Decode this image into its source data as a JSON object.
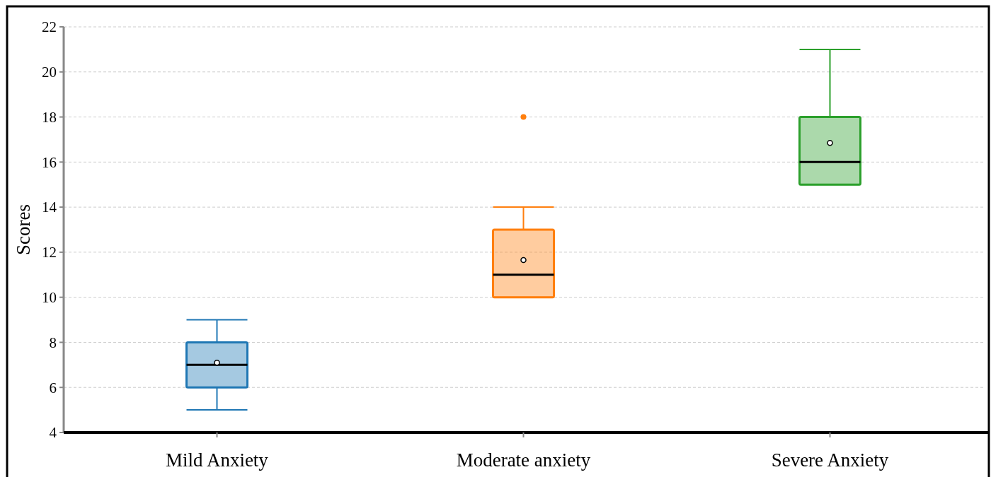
{
  "chart_data": {
    "type": "box",
    "ylabel": "Scores",
    "categories": [
      "Mild Anxiety",
      "Moderate anxiety",
      "Severe Anxiety"
    ],
    "colors": [
      "#1f77b4",
      "#ff7f0e",
      "#2ca02c"
    ],
    "boxes": [
      {
        "low": 5,
        "q1": 6,
        "median": 7,
        "q3": 8,
        "high": 9,
        "mean": 7.1
      },
      {
        "low": 10,
        "q1": 10,
        "median": 11,
        "q3": 13,
        "high": 14,
        "mean": 11.65,
        "outliers": [
          18
        ]
      },
      {
        "low": 15,
        "q1": 15,
        "median": 16,
        "q3": 18,
        "high": 21,
        "mean": 16.85
      }
    ],
    "ylim": [
      4,
      22
    ],
    "yticks": [
      4,
      6,
      8,
      10,
      12,
      14,
      16,
      18,
      20,
      22
    ],
    "grid": "y"
  }
}
